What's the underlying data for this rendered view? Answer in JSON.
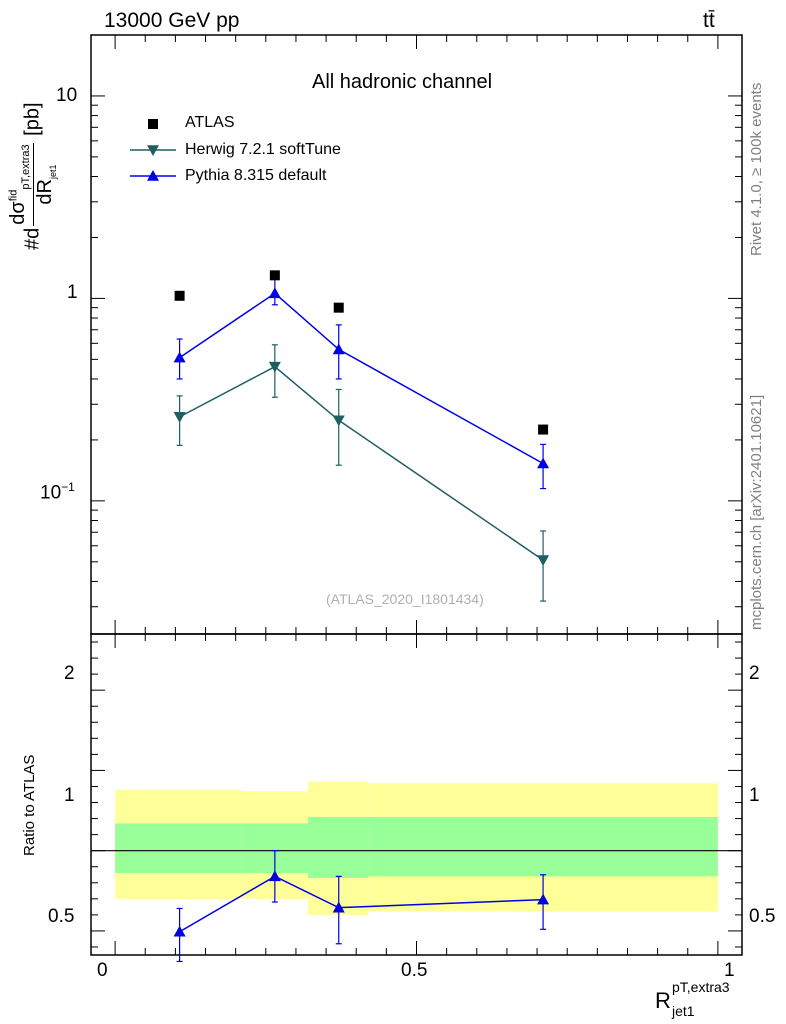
{
  "header": {
    "energy_label": "13000 GeV pp",
    "process_label": "tt̄"
  },
  "side_labels": {
    "rivet": "Rivet 4.1.0, ≥ 100k events",
    "mcplots": "mcplots.cern.ch [arXiv:2401.10621]"
  },
  "chart_data": [
    {
      "type": "scatter",
      "panel": "main",
      "title": "All hadronic channel",
      "watermark": "(ATLAS_2020_I1801434)",
      "ylabel_parts": {
        "prefix": "#d",
        "num": "dσ",
        "num_sup": "fid",
        "num_sub": "pT,extra3",
        "den": "dR",
        "den_sub": "jet1",
        "unit": "[pb]"
      },
      "yscale": "log",
      "ylim": [
        0.022,
        20
      ],
      "xlim": [
        -0.04,
        1.04
      ],
      "ytick_labels": [
        {
          "value": 10,
          "label": "10"
        },
        {
          "value": 1,
          "label": "1"
        },
        {
          "value": 0.1,
          "label": "10",
          "sup": "−1"
        }
      ],
      "legend_position": "top-left",
      "series": [
        {
          "name": "ATLAS",
          "color": "#000000",
          "marker": "square",
          "line": false,
          "x": [
            0.107,
            0.265,
            0.371,
            0.71
          ],
          "y": [
            1.03,
            1.3,
            0.9,
            0.225
          ]
        },
        {
          "name": "Herwig 7.2.1 softTune",
          "color": "#1f5f62",
          "marker": "triangle-down",
          "line": true,
          "x": [
            0.107,
            0.265,
            0.371,
            0.71
          ],
          "y": [
            0.26,
            0.46,
            0.25,
            0.051
          ],
          "err_lo": [
            0.188,
            0.325,
            0.15,
            0.032
          ],
          "err_hi": [
            0.33,
            0.59,
            0.355,
            0.071
          ]
        },
        {
          "name": "Pythia 8.315 default",
          "color": "#0000e6",
          "marker": "triangle-up",
          "line": true,
          "x": [
            0.107,
            0.265,
            0.371,
            0.71
          ],
          "y": [
            0.51,
            1.06,
            0.56,
            0.153
          ],
          "err_lo": [
            0.4,
            0.93,
            0.4,
            0.115
          ],
          "err_hi": [
            0.63,
            1.25,
            0.74,
            0.19
          ]
        }
      ]
    },
    {
      "type": "scatter",
      "panel": "ratio",
      "ylabel": "Ratio to ATLAS",
      "xlabel_parts": {
        "base": "R",
        "sub": "jet1",
        "sup": "pT,extra3"
      },
      "ylim": [
        0.35,
        2.35
      ],
      "xlim": [
        -0.04,
        1.04
      ],
      "ytick_labels": [
        {
          "value": 2,
          "label": "2"
        },
        {
          "value": 1,
          "label": "1"
        },
        {
          "value": 0.5,
          "label": "0.5"
        }
      ],
      "xtick_labels": [
        {
          "value": 0,
          "label": "0"
        },
        {
          "value": 0.5,
          "label": "0.5"
        },
        {
          "value": 1,
          "label": "1"
        }
      ],
      "reference_line": 1,
      "bands": [
        {
          "name": "total uncertainty",
          "color": "#ffff99",
          "bins": [
            [
              0,
              0.21,
              0.7,
              1.38
            ],
            [
              0.21,
              0.32,
              0.7,
              1.37
            ],
            [
              0.32,
              0.42,
              0.6,
              1.43
            ],
            [
              0.42,
              1.0,
              0.62,
              1.42
            ]
          ]
        },
        {
          "name": "stat uncertainty",
          "color": "#99ff99",
          "bins": [
            [
              0,
              0.21,
              0.86,
              1.17
            ],
            [
              0.21,
              0.32,
              0.86,
              1.17
            ],
            [
              0.32,
              0.42,
              0.83,
              1.21
            ],
            [
              0.42,
              1.0,
              0.84,
              1.21
            ]
          ]
        }
      ],
      "series": [
        {
          "name": "Pythia 8.315 default",
          "color": "#0000e6",
          "marker": "triangle-up",
          "x": [
            0.107,
            0.265,
            0.371,
            0.71
          ],
          "y": [
            0.495,
            0.84,
            0.645,
            0.695
          ],
          "err_lo": [
            0.31,
            0.68,
            0.42,
            0.51
          ],
          "err_hi": [
            0.64,
            1.0,
            0.84,
            0.85
          ]
        }
      ]
    }
  ]
}
